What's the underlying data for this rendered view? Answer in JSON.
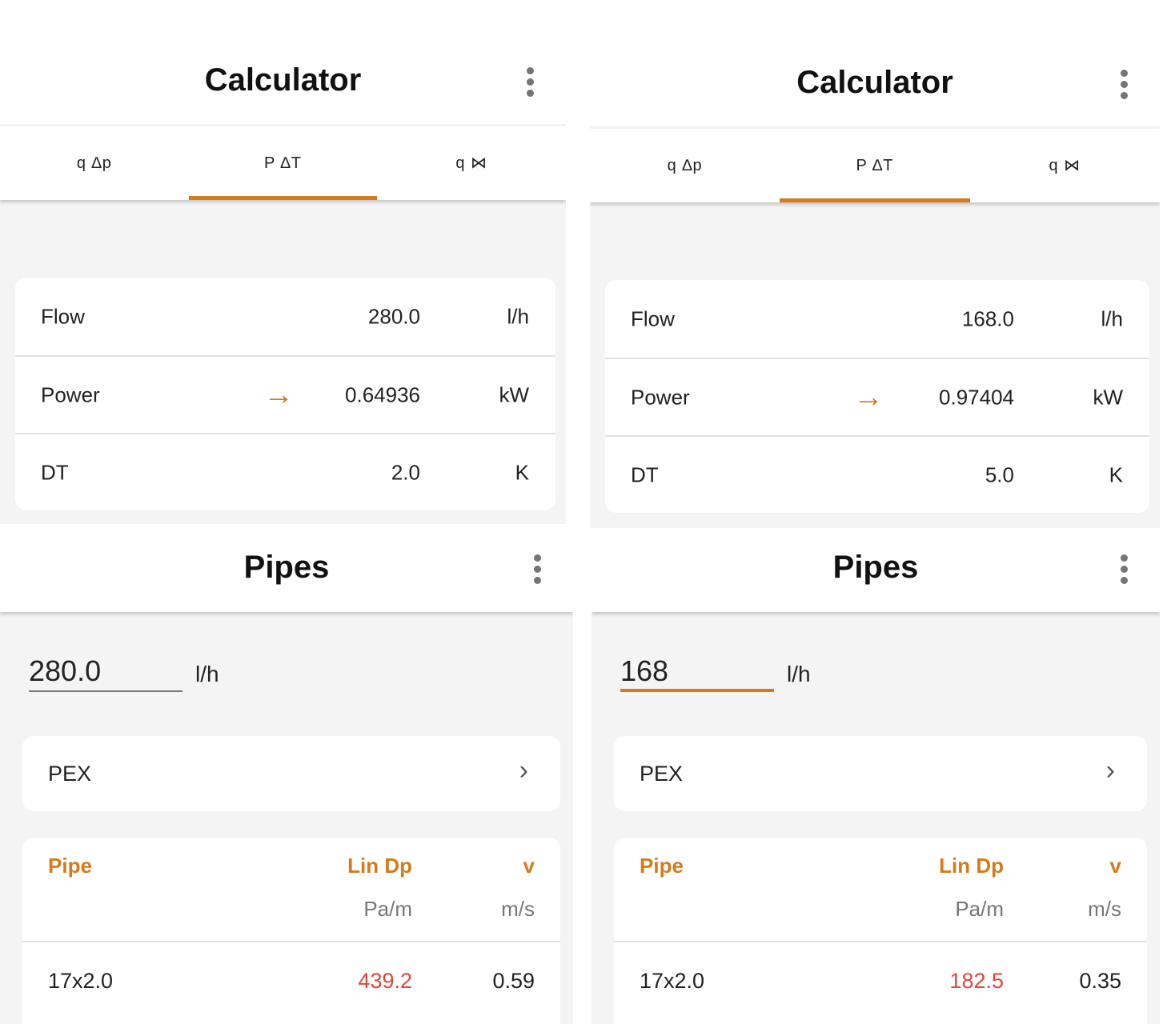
{
  "accent_color": "#d67a1a",
  "warning_color": "#e0463a",
  "calculator_screens": [
    {
      "title": "Calculator",
      "menu_icon": "more-vert-icon",
      "tabs": [
        {
          "label": "q ∆p"
        },
        {
          "label": "P ∆T",
          "active": true
        },
        {
          "label": "q ⋈"
        }
      ],
      "rows": [
        {
          "label": "Flow",
          "value": "280.0",
          "unit": "l/h",
          "arrow": false
        },
        {
          "label": "Power",
          "value": "0.64936",
          "unit": "kW",
          "arrow": true
        },
        {
          "label": "DT",
          "value": "2.0",
          "unit": "K",
          "arrow": false
        }
      ]
    },
    {
      "title": "Calculator",
      "menu_icon": "more-vert-icon",
      "tabs": [
        {
          "label": "q ∆p"
        },
        {
          "label": "P ∆T",
          "active": true
        },
        {
          "label": "q ⋈"
        }
      ],
      "rows": [
        {
          "label": "Flow",
          "value": "168.0",
          "unit": "l/h",
          "arrow": false
        },
        {
          "label": "Power",
          "value": "0.97404",
          "unit": "kW",
          "arrow": true
        },
        {
          "label": "DT",
          "value": "5.0",
          "unit": "K",
          "arrow": false
        }
      ]
    }
  ],
  "pipes_screens": [
    {
      "title": "Pipes",
      "flow_value": "280.0",
      "flow_unit": "l/h",
      "focused": false,
      "material": "PEX",
      "headers": {
        "pipe": "Pipe",
        "lin_dp": "Lin Dp",
        "v": "v",
        "lin_dp_unit": "Pa/m",
        "v_unit": "m/s"
      },
      "rows": [
        {
          "pipe": "17x2.0",
          "lin_dp": "439.2",
          "v": "0.59"
        }
      ]
    },
    {
      "title": "Pipes",
      "flow_value": "168",
      "flow_unit": "l/h",
      "focused": true,
      "material": "PEX",
      "headers": {
        "pipe": "Pipe",
        "lin_dp": "Lin Dp",
        "v": "v",
        "lin_dp_unit": "Pa/m",
        "v_unit": "m/s"
      },
      "rows": [
        {
          "pipe": "17x2.0",
          "lin_dp": "182.5",
          "v": "0.35"
        }
      ]
    }
  ]
}
